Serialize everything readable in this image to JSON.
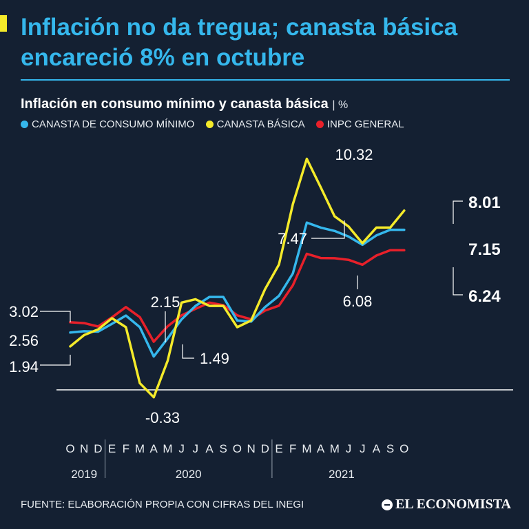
{
  "headline": "Inflación no da tregua; canasta básica encareció 8% en octubre",
  "subtitle": "Inflación en consumo mínimo y canasta básica",
  "unit": "%",
  "source": "FUENTE: ELABORACIÓN PROPIA CON CIFRAS DEL INEGI",
  "brand": "EL ECONOMISTA",
  "colors": {
    "background": "#142032",
    "accent": "#35b7ec",
    "yellow": "#f4ea2a",
    "red": "#e8202a"
  },
  "chart_data": {
    "type": "line",
    "x": [
      "O",
      "N",
      "D",
      "E",
      "F",
      "M",
      "A",
      "M",
      "J",
      "J",
      "A",
      "S",
      "O",
      "N",
      "D",
      "E",
      "F",
      "M",
      "A",
      "M",
      "J",
      "J",
      "A",
      "S",
      "O"
    ],
    "year_labels": [
      "2019",
      "2020",
      "2021"
    ],
    "series": [
      {
        "name": "CANASTA DE CONSUMO MÍNIMO",
        "color": "#35b7ec",
        "values": [
          2.56,
          2.62,
          2.6,
          2.95,
          3.32,
          2.8,
          1.49,
          2.3,
          3.15,
          3.75,
          4.15,
          4.15,
          3.1,
          3.05,
          3.7,
          4.2,
          5.2,
          7.47,
          7.25,
          7.1,
          6.85,
          6.48,
          6.9,
          7.15,
          7.15
        ],
        "labels": {
          "0": "2.56",
          "6": "1.49",
          "17": "7.47",
          "24": "7.15"
        }
      },
      {
        "name": "CANASTA BÁSICA",
        "color": "#f4ea2a",
        "values": [
          1.94,
          2.45,
          2.7,
          3.2,
          2.8,
          0.3,
          -0.33,
          1.3,
          3.9,
          4.05,
          3.75,
          3.75,
          2.8,
          3.1,
          4.5,
          5.6,
          8.3,
          10.32,
          9.05,
          7.75,
          7.3,
          6.55,
          7.25,
          7.25,
          8.01
        ],
        "labels": {
          "0": "1.94",
          "6": "-0.33",
          "17": "10.32",
          "24": "8.01"
        }
      },
      {
        "name": "INPC GENERAL",
        "color": "#e8202a",
        "values": [
          3.02,
          2.98,
          2.83,
          3.24,
          3.7,
          3.25,
          2.15,
          2.84,
          3.33,
          3.62,
          3.9,
          3.78,
          3.33,
          3.15,
          3.54,
          3.76,
          4.67,
          6.08,
          5.89,
          5.88,
          5.81,
          5.59,
          6.0,
          6.24,
          6.24
        ],
        "labels": {
          "0": "3.02",
          "6": "2.15",
          "17": "6.08",
          "24": "6.24"
        }
      }
    ],
    "ylim": [
      -0.5,
      11
    ],
    "grid": false,
    "legend": "top-left"
  }
}
